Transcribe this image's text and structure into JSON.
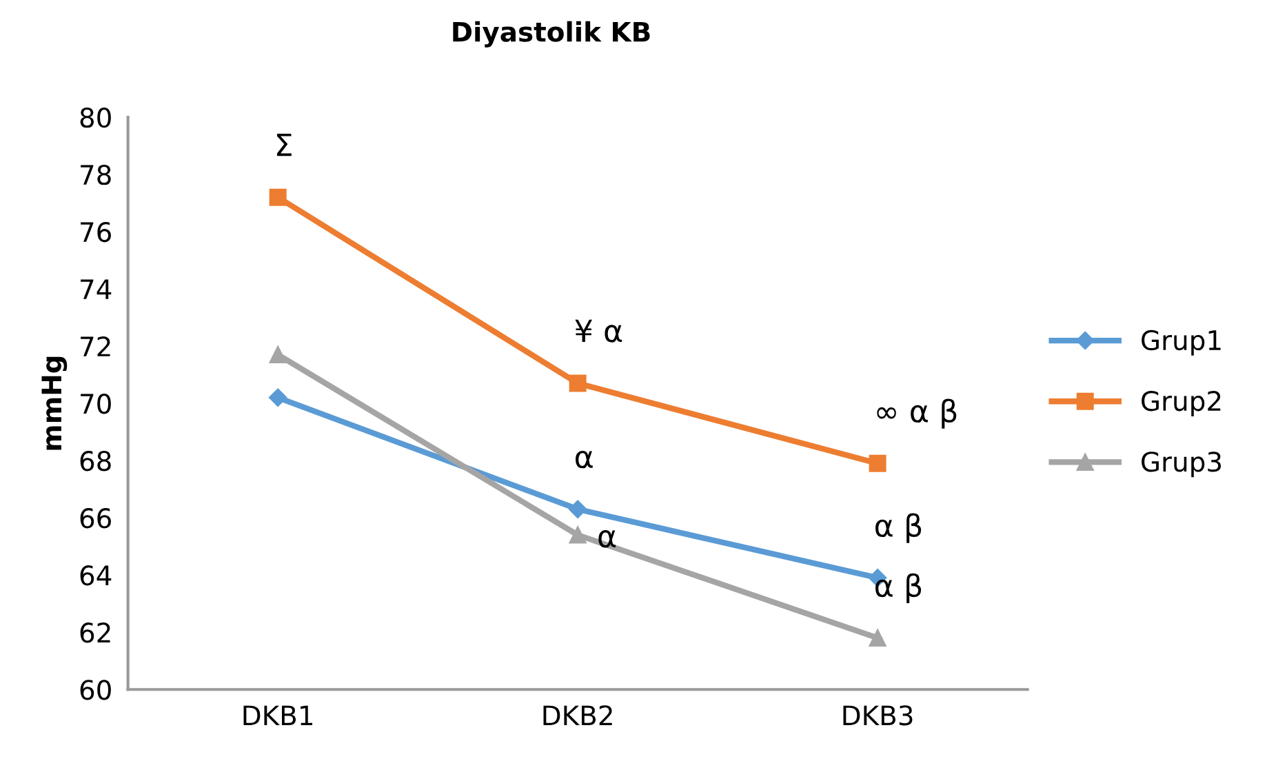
{
  "chart_data": {
    "type": "line",
    "title": "Diyastolik KB",
    "ylabel": "mmHg",
    "categories": [
      "DKB1",
      "DKB2",
      "DKB3"
    ],
    "series": [
      {
        "name": "Grup1",
        "color": "#5b9bd5",
        "marker": "diamond",
        "values": [
          70.2,
          66.3,
          63.9
        ]
      },
      {
        "name": "Grup2",
        "color": "#ed7d31",
        "marker": "square",
        "values": [
          77.2,
          70.7,
          67.9
        ]
      },
      {
        "name": "Grup3",
        "color": "#a5a5a5",
        "marker": "triangle",
        "values": [
          71.7,
          65.4,
          61.8
        ]
      }
    ],
    "annotations": [
      {
        "text": "Σ",
        "x": "DKB1",
        "y": 77.2
      },
      {
        "text": "¥ α",
        "x": "DKB2",
        "y": 70.7
      },
      {
        "text": "∞ α β",
        "x": "DKB3",
        "y": 67.9
      },
      {
        "text": "α",
        "x": "DKB2",
        "y": 66.3
      },
      {
        "text": "α",
        "x": "DKB2",
        "y": 65.4
      },
      {
        "text": "α β",
        "x": "DKB3",
        "y": 63.9
      },
      {
        "text": "α β",
        "x": "DKB3",
        "y": 61.8
      }
    ],
    "ylim": [
      60,
      80
    ],
    "yticks": [
      60,
      62,
      64,
      66,
      68,
      70,
      72,
      74,
      76,
      78,
      80
    ],
    "grid": false,
    "legend": "right",
    "line_style": "solid"
  }
}
